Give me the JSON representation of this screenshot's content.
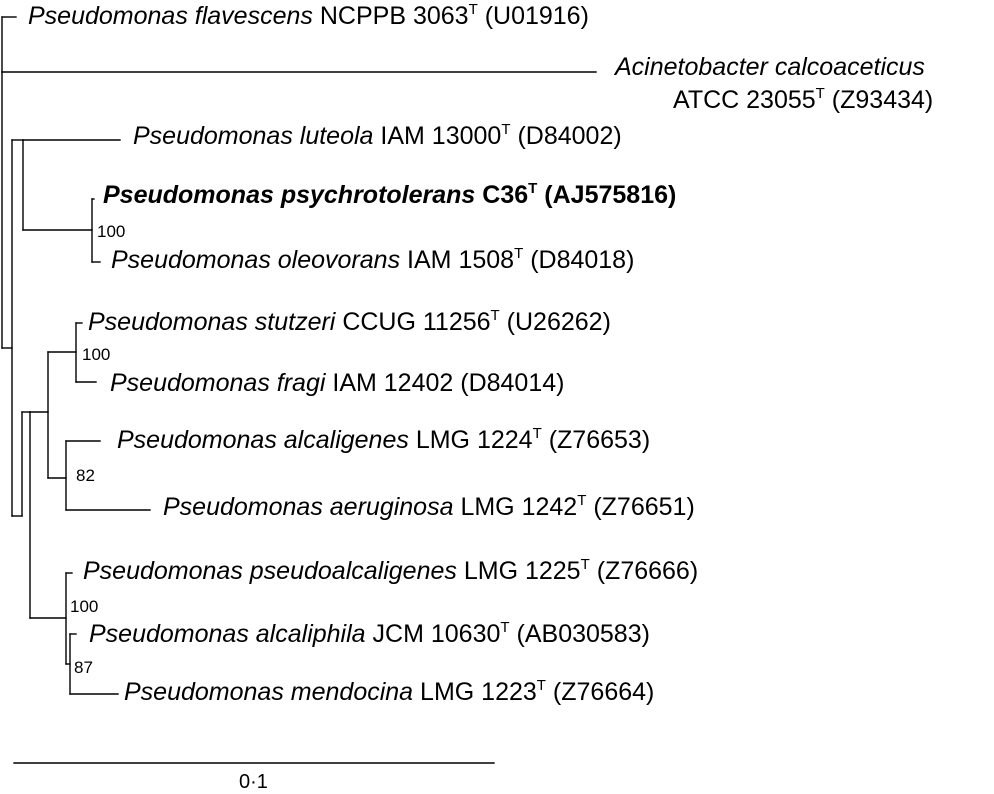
{
  "taxa": [
    {
      "id": "flavescens",
      "genus": "Pseudomonas",
      "species": "flavescens",
      "strain": "NCPPB 3063",
      "type_strain": true,
      "accession": "(U01916)",
      "bold": false
    },
    {
      "id": "acinetobacter",
      "genus": "Acinetobacter",
      "species": "calcoaceticus",
      "strain": "ATCC 23055",
      "type_strain": true,
      "accession": "(Z93434)",
      "bold": false
    },
    {
      "id": "luteola",
      "genus": "Pseudomonas",
      "species": "luteola",
      "strain": "IAM 13000",
      "type_strain": true,
      "accession": "(D84002)",
      "bold": false
    },
    {
      "id": "psychrotolerans",
      "genus": "Pseudomonas",
      "species": "psychrotolerans",
      "strain": "C36",
      "type_strain": true,
      "accession": "(AJ575816)",
      "bold": true
    },
    {
      "id": "oleovorans",
      "genus": "Pseudomonas",
      "species": "oleovorans",
      "strain": "IAM 1508",
      "type_strain": true,
      "accession": "(D84018)",
      "bold": false
    },
    {
      "id": "stutzeri",
      "genus": "Pseudomonas",
      "species": "stutzeri",
      "strain": "CCUG 11256",
      "type_strain": true,
      "accession": "(U26262)",
      "bold": false
    },
    {
      "id": "fragi",
      "genus": "Pseudomonas",
      "species": "fragi",
      "strain": "IAM 12402",
      "type_strain": false,
      "accession": "(D84014)",
      "bold": false
    },
    {
      "id": "alcaligenes",
      "genus": "Pseudomonas",
      "species": "alcaligenes",
      "strain": "LMG 1224",
      "type_strain": true,
      "accession": "(Z76653)",
      "bold": false
    },
    {
      "id": "aeruginosa",
      "genus": "Pseudomonas",
      "species": "aeruginosa",
      "strain": "LMG 1242",
      "type_strain": true,
      "accession": "(Z76651)",
      "bold": false
    },
    {
      "id": "pseudoalcaligenes",
      "genus": "Pseudomonas",
      "species": "pseudoalcaligenes",
      "strain": "LMG 1225",
      "type_strain": true,
      "accession": "(Z76666)",
      "bold": false
    },
    {
      "id": "alcaliphila",
      "genus": "Pseudomonas",
      "species": "alcaliphila",
      "strain": "JCM 10630",
      "type_strain": true,
      "accession": "(AB030583)",
      "bold": false
    },
    {
      "id": "mendocina",
      "genus": "Pseudomonas",
      "species": "mendocina",
      "strain": "LMG 1223",
      "type_strain": true,
      "accession": "(Z76664)",
      "bold": false
    }
  ],
  "type_strain_mark": "T",
  "bootstrap": {
    "psychro_oleovorans": "100",
    "stutzeri_fragi": "100",
    "alcaligenes_aeruginosa": "82",
    "mendocina_group": "100",
    "alcaliphila_mendocina": "87"
  },
  "scale_bar": {
    "label": "0·1"
  }
}
